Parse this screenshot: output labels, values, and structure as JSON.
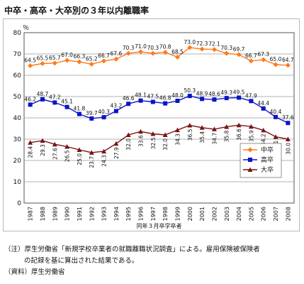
{
  "title": "中卒・高卒・大卒別の３年以内離職率",
  "chart_data": {
    "type": "line",
    "unit_label": "％",
    "xlabel": "同年３月卒学卒者",
    "categories": [
      "1987",
      "1988",
      "1989",
      "1990",
      "1991",
      "1992",
      "1993",
      "1994",
      "1995",
      "1996",
      "1997",
      "1998",
      "1999",
      "2000",
      "2001",
      "2002",
      "2003",
      "2004",
      "2005",
      "2006",
      "2007",
      "2008"
    ],
    "ylim": [
      0,
      80
    ],
    "yticks": [
      0,
      10,
      20,
      30,
      40,
      50,
      60,
      70,
      80
    ],
    "grid": true,
    "legend_position": "right",
    "series": [
      {
        "name": "中卒",
        "color": "#ff7a1a",
        "marker": "diamond",
        "values": [
          64.5,
          65.5,
          65.7,
          67.0,
          66.3,
          65.2,
          66.7,
          67.6,
          70.3,
          71.0,
          70.3,
          70.8,
          68.5,
          73.0,
          72.3,
          72.1,
          70.3,
          69.7,
          66.7,
          67.3,
          65.0,
          64.7
        ]
      },
      {
        "name": "高卒",
        "color": "#0a14c8",
        "marker": "square",
        "values": [
          46.2,
          48.7,
          47.2,
          45.1,
          41.8,
          39.7,
          40.3,
          43.2,
          46.6,
          48.1,
          47.5,
          46.8,
          48.0,
          50.3,
          48.9,
          48.6,
          49.3,
          49.5,
          47.9,
          44.4,
          40.4,
          37.6
        ]
      },
      {
        "name": "大卒",
        "color": "#7a1414",
        "marker": "triangle",
        "values": [
          28.4,
          29.3,
          27.6,
          26.5,
          25.0,
          23.7,
          24.3,
          27.9,
          32.0,
          33.6,
          32.5,
          32.0,
          34.3,
          36.5,
          35.4,
          34.7,
          35.8,
          36.6,
          35.9,
          34.2,
          31.1,
          30.0
        ]
      }
    ]
  },
  "footnote": {
    "line1": "（注）厚生労働省「新規学校卒業者の就職離職状況調査」による。雇用保険被保険者",
    "line2": "の記録を基に算出された結果である。",
    "line3": "（資料）厚生労働省"
  }
}
